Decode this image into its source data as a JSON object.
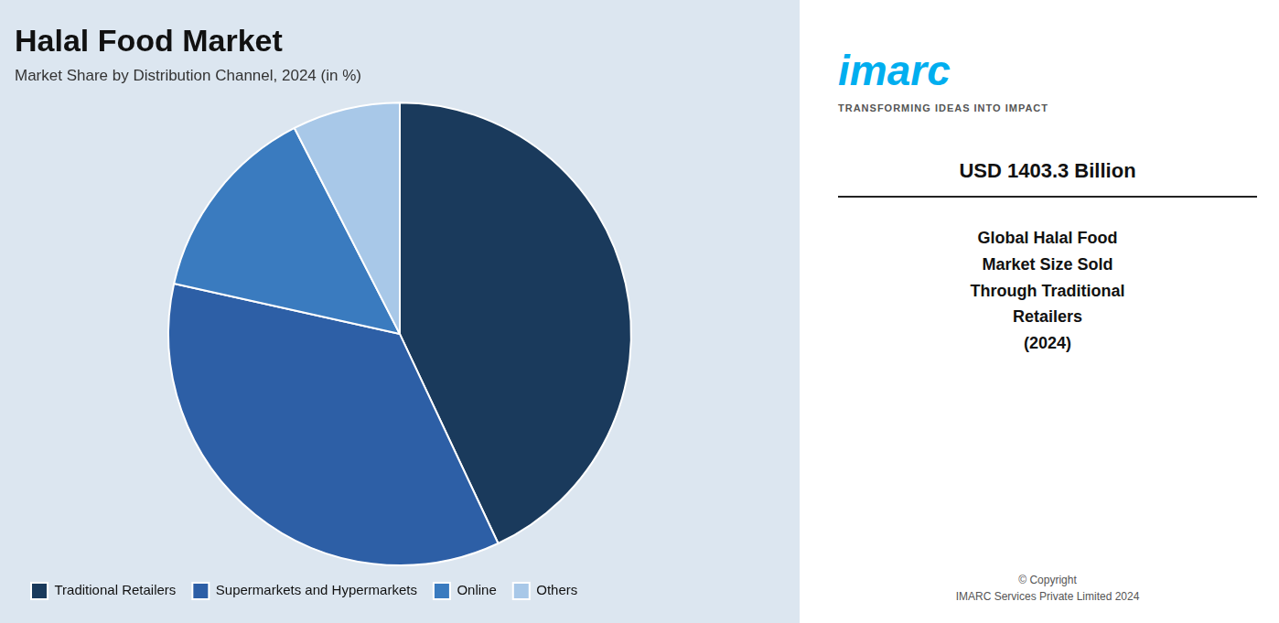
{
  "chart_data": {
    "type": "pie",
    "title": "Halal Food Market",
    "subtitle": "Market Share by Distribution Channel, 2024 (in %)",
    "categories": [
      "Traditional Retailers",
      "Supermarkets and Hypermarkets",
      "Online",
      "Others"
    ],
    "values": [
      40,
      33,
      13,
      7
    ],
    "colors": [
      "#1a3a5c",
      "#2d5fa6",
      "#3a7bbf",
      "#a8c8e8"
    ],
    "legend": "bottom",
    "annotations": [
      "imarc",
      "TRANSFORMING IDEAS INTO IMPACT",
      "USD 1403.3 Billion",
      "Global Halal Food\nMarket Size Sold\nThrough Traditional\nRetailers\n(2024)",
      "© Copyright\nIMARC Services Private Limited 2024"
    ]
  }
}
